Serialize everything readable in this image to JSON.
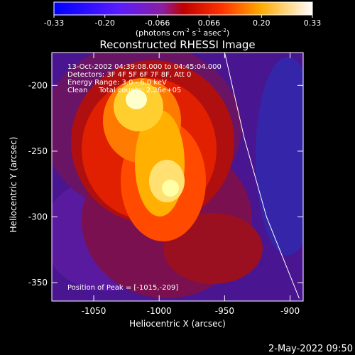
{
  "colorbar": {
    "tick_labels": [
      "-0.33",
      "-0.20",
      "-0.066",
      "0.066",
      "0.20",
      "0.33"
    ],
    "range": [
      -0.33,
      0.33
    ],
    "units_label": "(photons cm-2 s-1 asec-2)"
  },
  "chart_data": {
    "type": "heatmap",
    "title": "Reconstructed RHESSI Image",
    "xlabel": "Heliocentric X (arcsec)",
    "ylabel": "Heliocentric Y (arcsec)",
    "xlim": [
      -1082,
      -890
    ],
    "ylim": [
      -364,
      -175
    ],
    "x_ticks": [
      -1050,
      -1000,
      -950,
      -900
    ],
    "y_ticks": [
      -200,
      -250,
      -300,
      -350
    ],
    "x_tick_labels": [
      "-1050",
      "-1000",
      "-950",
      "-900"
    ],
    "y_tick_labels": [
      "-200",
      "-250",
      "-300",
      "-350"
    ],
    "peak_position": [
      -1015,
      -209
    ],
    "annotations": [
      "13-Oct-2002 04:39:08.000 to 04:45:04.000",
      "Detectors: 3F 4F 5F 6F 7F 8F, Att 0",
      "Energy Range: 3.0 - 6.0 keV",
      "Clean     Total counts: 2.26e+05",
      "Position of Peak = [-1015,-209]"
    ],
    "limb_curve": [
      [
        -950,
        -175
      ],
      [
        -935,
        -240
      ],
      [
        -918,
        -300
      ],
      [
        -893,
        -362
      ]
    ]
  },
  "footer": {
    "timestamp": "2-May-2022 09:50"
  }
}
